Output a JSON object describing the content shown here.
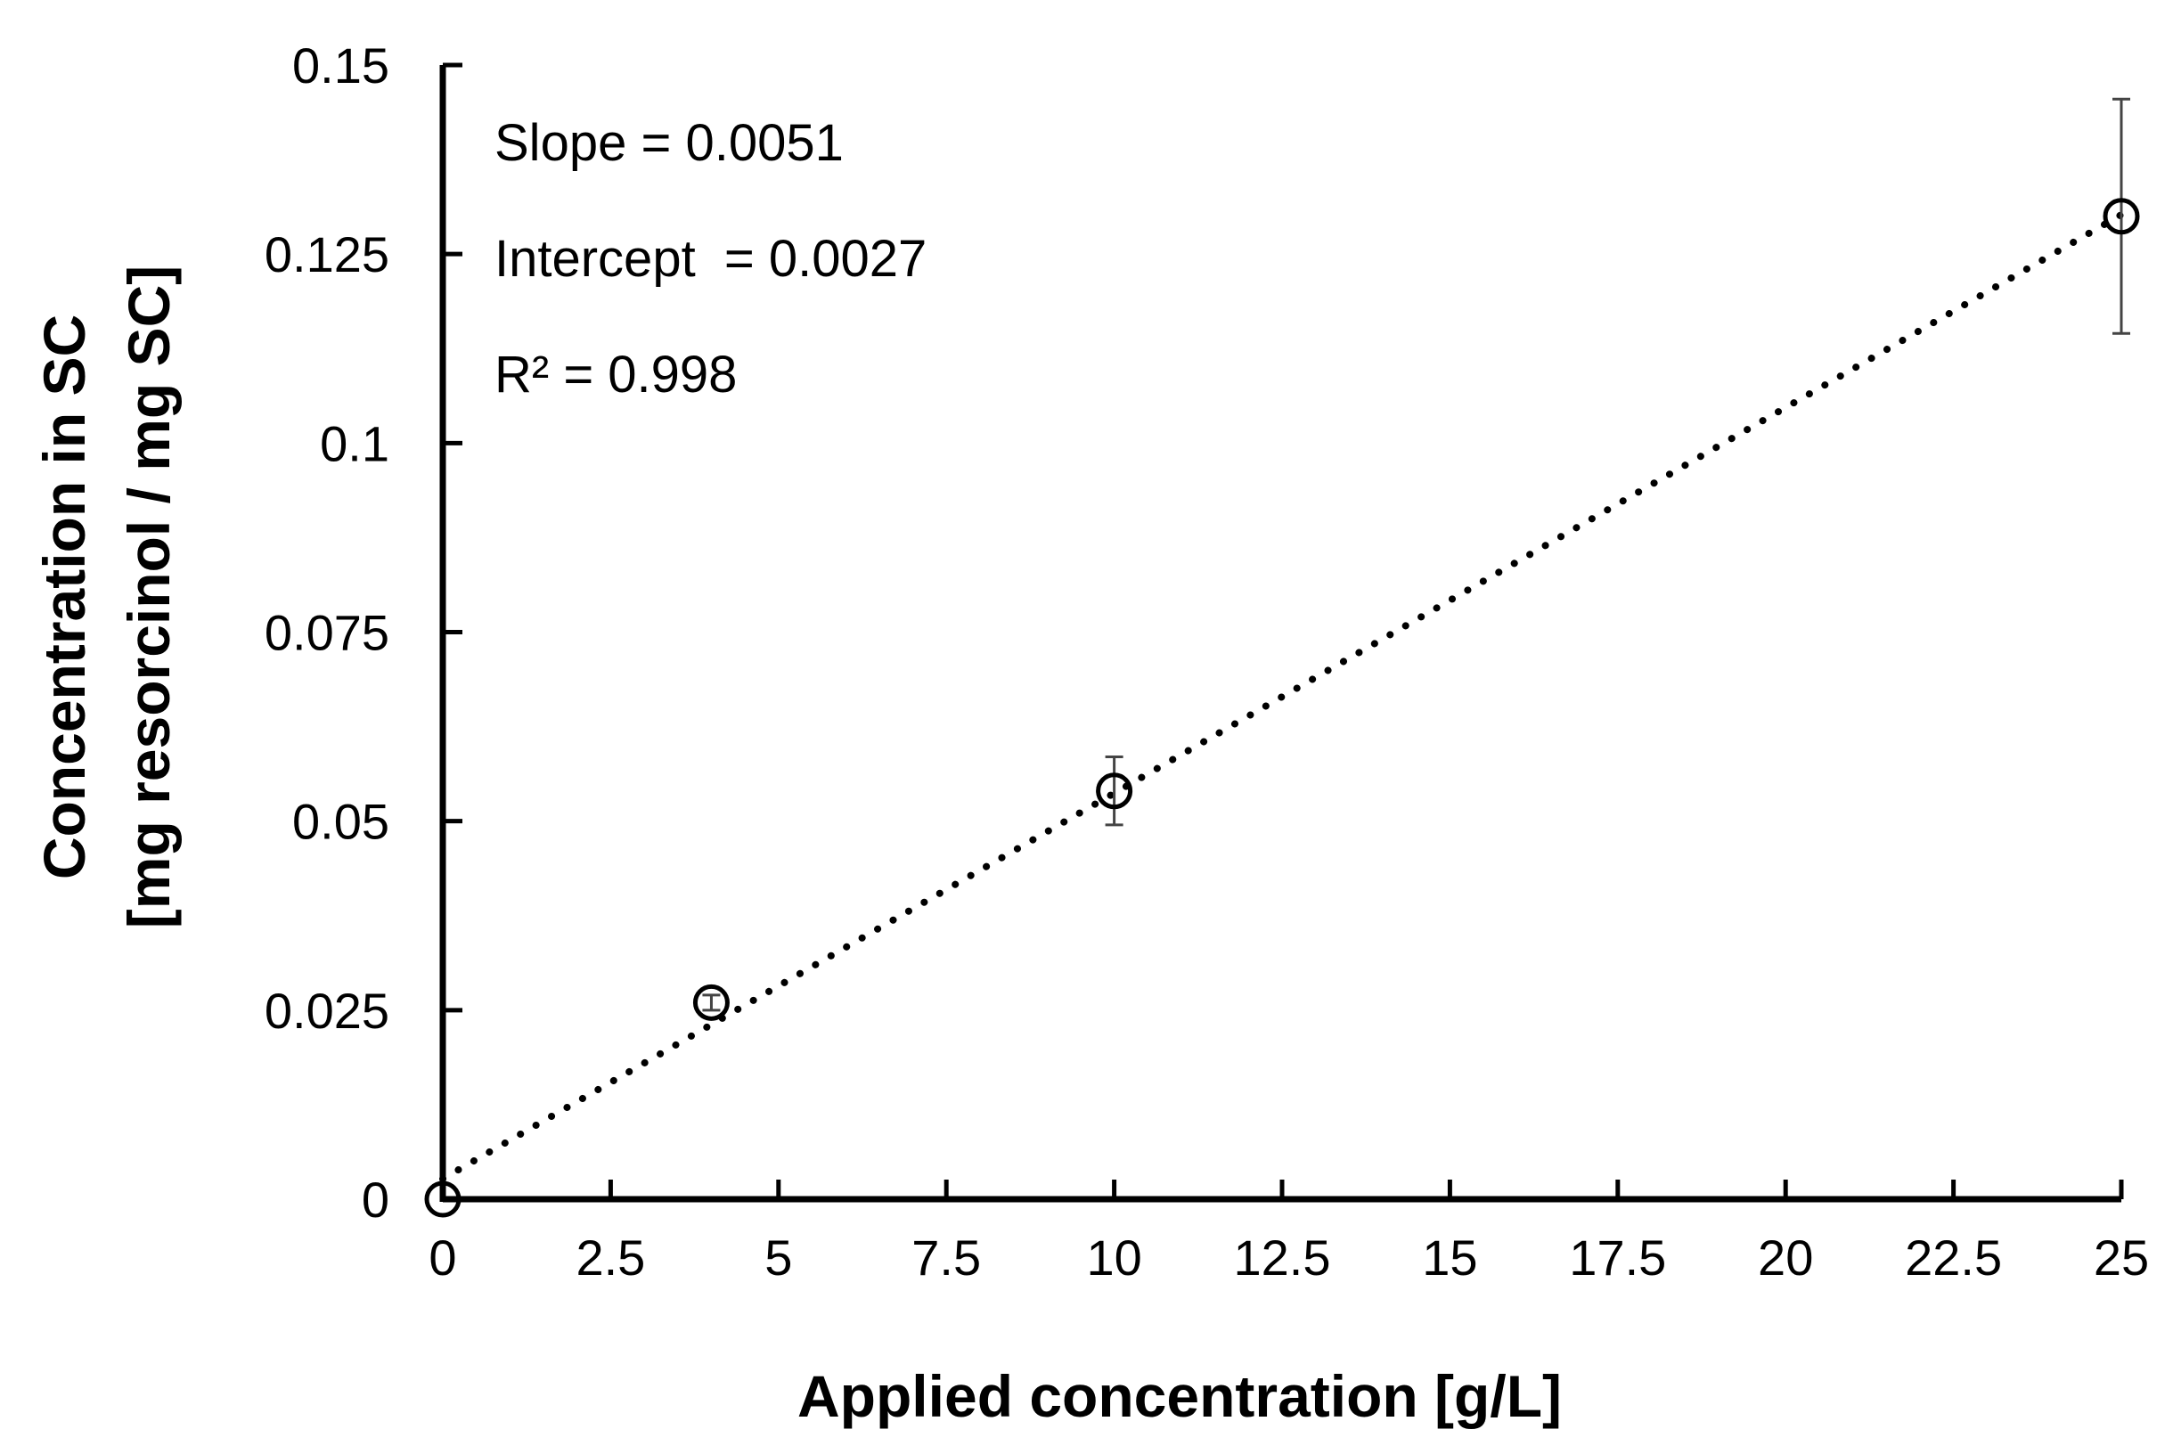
{
  "chart_data": {
    "type": "scatter",
    "title": "",
    "xlabel": "Applied concentration [g/L]",
    "ylabel_line1": "Concentration in SC",
    "ylabel_line2": "[mg resorcinol / mg SC]",
    "xlim": [
      0,
      25
    ],
    "ylim": [
      0,
      0.15
    ],
    "xticks": [
      "0",
      "2.5",
      "5",
      "7.5",
      "10",
      "12.5",
      "15",
      "17.5",
      "20",
      "22.5",
      "25"
    ],
    "yticks": [
      "0",
      "0.025",
      "0.05",
      "0.075",
      "0.1",
      "0.125",
      "0.15"
    ],
    "grid": false,
    "legend": "none",
    "series": [
      {
        "marker": "open-circle",
        "x": [
          0,
          4,
          10,
          25
        ],
        "y": [
          0,
          0.026,
          0.054,
          0.13
        ],
        "error": [
          0,
          0.001,
          0.0045,
          0.0155
        ]
      }
    ],
    "trendline": {
      "style": "dotted",
      "slope": 0.0051,
      "intercept": 0.0027,
      "x_range": [
        0,
        25
      ]
    },
    "annotations": [
      "Slope = 0.0051",
      "Intercept  = 0.0027",
      "R² = 0.998"
    ]
  }
}
